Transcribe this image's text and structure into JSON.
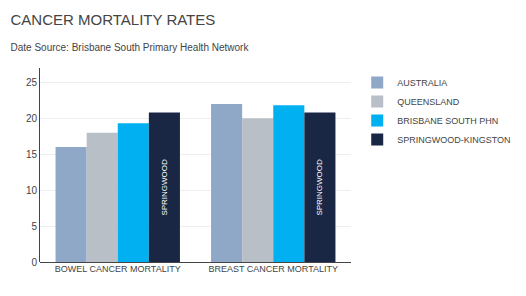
{
  "chart_data": {
    "type": "bar",
    "title": "CANCER MORTALITY RATES",
    "subtitle": "Date Source: Brisbane South Primary Health Network",
    "categories": [
      "BOWEL CANCER MORTALITY",
      "BREAST CANCER MORTALITY"
    ],
    "series": [
      {
        "name": "AUSTRALIA",
        "color": "#8fa8c8",
        "values": [
          16.0,
          22.0
        ]
      },
      {
        "name": "QUEENSLAND",
        "color": "#b8bfc7",
        "values": [
          18.0,
          20.0
        ]
      },
      {
        "name": "BRISBANE SOUTH PHN",
        "color": "#00b0f0",
        "values": [
          19.3,
          21.8
        ]
      },
      {
        "name": "SPRINGWOOD-KINGSTON",
        "color": "#1a2744",
        "values": [
          20.8,
          20.8
        ]
      }
    ],
    "annotations": [
      {
        "text": "SPRINGWOOD",
        "series": "SPRINGWOOD-KINGSTON"
      }
    ],
    "ylim": [
      0,
      27
    ],
    "yticks": [
      0,
      5,
      10,
      15,
      20,
      25
    ],
    "grid": true
  }
}
